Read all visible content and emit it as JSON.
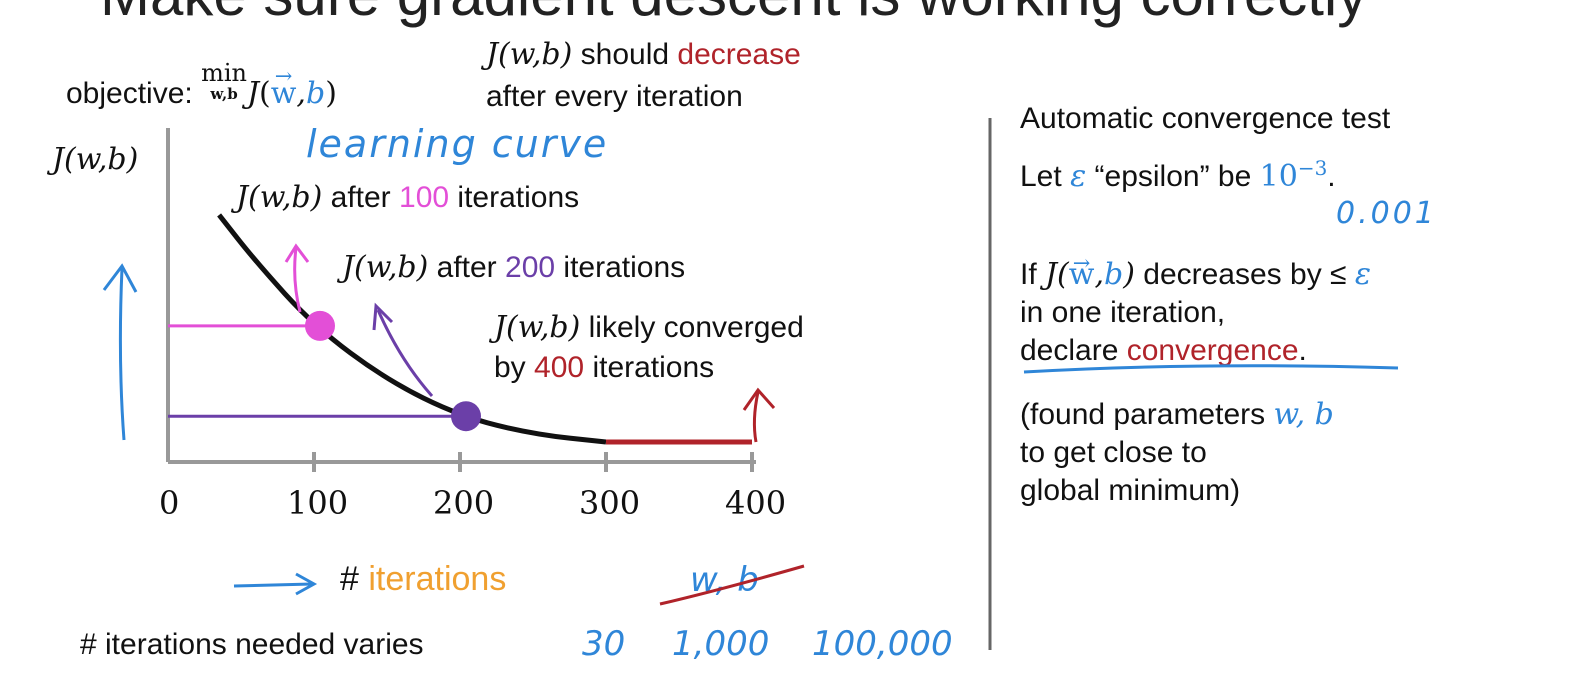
{
  "title": "Make sure gradient descent is working correctly",
  "objective": {
    "prefix": "objective:",
    "min": "min",
    "min_sub": "w,b",
    "func": "J",
    "args_w": "w",
    "args_b": "b"
  },
  "should_decrease": {
    "func": "J(w,b)",
    "text1": "should",
    "highlight": "decrease",
    "text2": "after every iteration"
  },
  "chart_data": {
    "type": "line",
    "x": [
      35,
      60,
      100,
      150,
      200,
      250,
      300
    ],
    "y": [
      0.88,
      0.7,
      0.45,
      0.24,
      0.1,
      0.03,
      0.0
    ],
    "converged_segment": {
      "x": [
        300,
        400
      ],
      "y": [
        0,
        0
      ]
    },
    "xlim": [
      0,
      400
    ],
    "ylim": [
      0,
      1
    ],
    "xticks": [
      "0",
      "100",
      "200",
      "300",
      "400"
    ],
    "ylabel": "J(w,b)",
    "xlabel_prefix": "#",
    "xlabel": "iterations",
    "crossed_label": "w, b",
    "handwritten_title": "learning curve",
    "markers": [
      {
        "x": 100,
        "y": 0.45,
        "color": "#e34fd7"
      },
      {
        "x": 200,
        "y": 0.1,
        "color": "#6b3fa8"
      }
    ],
    "annotations": [
      {
        "func": "J(w,b)",
        "text1": "after",
        "highlight": "100",
        "text2": "iterations",
        "color": "#e34fd7"
      },
      {
        "func": "J(w,b)",
        "text1": "after",
        "highlight": "200",
        "text2": "iterations",
        "color": "#6b3fa8"
      },
      {
        "func": "J(w,b)",
        "text1": "likely converged",
        "text2a": "by",
        "highlight": "400",
        "text2b": "iterations",
        "color": "#b0232a"
      }
    ]
  },
  "iterations_needed": {
    "label": "# iterations needed varies",
    "values": [
      "30",
      "1,000",
      "100,000"
    ]
  },
  "convergence_test": {
    "heading": "Automatic convergence test",
    "line1_pre": "Let",
    "epsilon": "ε",
    "line1_mid": "“epsilon” be",
    "exp_base": "10",
    "exp_power": "−3",
    "period": ".",
    "handwritten_value": "0.001",
    "if_pre": "If",
    "if_post": "decreases by ≤",
    "line3": "in one iteration,",
    "declare": "declare",
    "convergence": "convergence",
    "found1": "(found parameters",
    "found_params": "w, b",
    "found2": "to get close to",
    "found3": "global minimum)"
  }
}
